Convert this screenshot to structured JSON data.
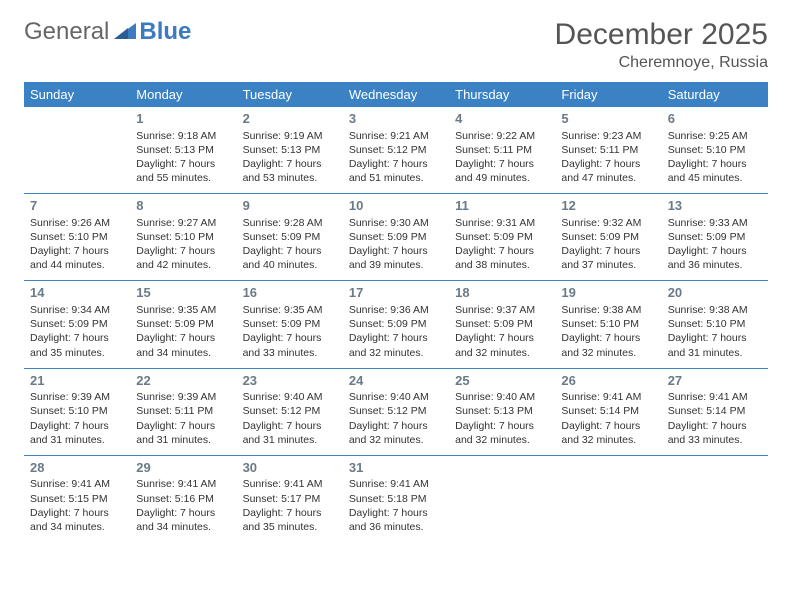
{
  "brand": {
    "part1": "General",
    "part2": "Blue"
  },
  "title": "December 2025",
  "location": "Cheremnoye, Russia",
  "colors": {
    "header_bg": "#3b82c4",
    "header_fg": "#ffffff",
    "row_divider": "#3b82c4",
    "daynum": "#6b7a88",
    "text": "#333333",
    "logo_gray": "#666666",
    "logo_blue": "#3b7bbf"
  },
  "weekdays": [
    "Sunday",
    "Monday",
    "Tuesday",
    "Wednesday",
    "Thursday",
    "Friday",
    "Saturday"
  ],
  "weeks": [
    [
      {
        "blank": true
      },
      {
        "day": "1",
        "sunrise": "Sunrise: 9:18 AM",
        "sunset": "Sunset: 5:13 PM",
        "daylight": "Daylight: 7 hours and 55 minutes."
      },
      {
        "day": "2",
        "sunrise": "Sunrise: 9:19 AM",
        "sunset": "Sunset: 5:13 PM",
        "daylight": "Daylight: 7 hours and 53 minutes."
      },
      {
        "day": "3",
        "sunrise": "Sunrise: 9:21 AM",
        "sunset": "Sunset: 5:12 PM",
        "daylight": "Daylight: 7 hours and 51 minutes."
      },
      {
        "day": "4",
        "sunrise": "Sunrise: 9:22 AM",
        "sunset": "Sunset: 5:11 PM",
        "daylight": "Daylight: 7 hours and 49 minutes."
      },
      {
        "day": "5",
        "sunrise": "Sunrise: 9:23 AM",
        "sunset": "Sunset: 5:11 PM",
        "daylight": "Daylight: 7 hours and 47 minutes."
      },
      {
        "day": "6",
        "sunrise": "Sunrise: 9:25 AM",
        "sunset": "Sunset: 5:10 PM",
        "daylight": "Daylight: 7 hours and 45 minutes."
      }
    ],
    [
      {
        "day": "7",
        "sunrise": "Sunrise: 9:26 AM",
        "sunset": "Sunset: 5:10 PM",
        "daylight": "Daylight: 7 hours and 44 minutes."
      },
      {
        "day": "8",
        "sunrise": "Sunrise: 9:27 AM",
        "sunset": "Sunset: 5:10 PM",
        "daylight": "Daylight: 7 hours and 42 minutes."
      },
      {
        "day": "9",
        "sunrise": "Sunrise: 9:28 AM",
        "sunset": "Sunset: 5:09 PM",
        "daylight": "Daylight: 7 hours and 40 minutes."
      },
      {
        "day": "10",
        "sunrise": "Sunrise: 9:30 AM",
        "sunset": "Sunset: 5:09 PM",
        "daylight": "Daylight: 7 hours and 39 minutes."
      },
      {
        "day": "11",
        "sunrise": "Sunrise: 9:31 AM",
        "sunset": "Sunset: 5:09 PM",
        "daylight": "Daylight: 7 hours and 38 minutes."
      },
      {
        "day": "12",
        "sunrise": "Sunrise: 9:32 AM",
        "sunset": "Sunset: 5:09 PM",
        "daylight": "Daylight: 7 hours and 37 minutes."
      },
      {
        "day": "13",
        "sunrise": "Sunrise: 9:33 AM",
        "sunset": "Sunset: 5:09 PM",
        "daylight": "Daylight: 7 hours and 36 minutes."
      }
    ],
    [
      {
        "day": "14",
        "sunrise": "Sunrise: 9:34 AM",
        "sunset": "Sunset: 5:09 PM",
        "daylight": "Daylight: 7 hours and 35 minutes."
      },
      {
        "day": "15",
        "sunrise": "Sunrise: 9:35 AM",
        "sunset": "Sunset: 5:09 PM",
        "daylight": "Daylight: 7 hours and 34 minutes."
      },
      {
        "day": "16",
        "sunrise": "Sunrise: 9:35 AM",
        "sunset": "Sunset: 5:09 PM",
        "daylight": "Daylight: 7 hours and 33 minutes."
      },
      {
        "day": "17",
        "sunrise": "Sunrise: 9:36 AM",
        "sunset": "Sunset: 5:09 PM",
        "daylight": "Daylight: 7 hours and 32 minutes."
      },
      {
        "day": "18",
        "sunrise": "Sunrise: 9:37 AM",
        "sunset": "Sunset: 5:09 PM",
        "daylight": "Daylight: 7 hours and 32 minutes."
      },
      {
        "day": "19",
        "sunrise": "Sunrise: 9:38 AM",
        "sunset": "Sunset: 5:10 PM",
        "daylight": "Daylight: 7 hours and 32 minutes."
      },
      {
        "day": "20",
        "sunrise": "Sunrise: 9:38 AM",
        "sunset": "Sunset: 5:10 PM",
        "daylight": "Daylight: 7 hours and 31 minutes."
      }
    ],
    [
      {
        "day": "21",
        "sunrise": "Sunrise: 9:39 AM",
        "sunset": "Sunset: 5:10 PM",
        "daylight": "Daylight: 7 hours and 31 minutes."
      },
      {
        "day": "22",
        "sunrise": "Sunrise: 9:39 AM",
        "sunset": "Sunset: 5:11 PM",
        "daylight": "Daylight: 7 hours and 31 minutes."
      },
      {
        "day": "23",
        "sunrise": "Sunrise: 9:40 AM",
        "sunset": "Sunset: 5:12 PM",
        "daylight": "Daylight: 7 hours and 31 minutes."
      },
      {
        "day": "24",
        "sunrise": "Sunrise: 9:40 AM",
        "sunset": "Sunset: 5:12 PM",
        "daylight": "Daylight: 7 hours and 32 minutes."
      },
      {
        "day": "25",
        "sunrise": "Sunrise: 9:40 AM",
        "sunset": "Sunset: 5:13 PM",
        "daylight": "Daylight: 7 hours and 32 minutes."
      },
      {
        "day": "26",
        "sunrise": "Sunrise: 9:41 AM",
        "sunset": "Sunset: 5:14 PM",
        "daylight": "Daylight: 7 hours and 32 minutes."
      },
      {
        "day": "27",
        "sunrise": "Sunrise: 9:41 AM",
        "sunset": "Sunset: 5:14 PM",
        "daylight": "Daylight: 7 hours and 33 minutes."
      }
    ],
    [
      {
        "day": "28",
        "sunrise": "Sunrise: 9:41 AM",
        "sunset": "Sunset: 5:15 PM",
        "daylight": "Daylight: 7 hours and 34 minutes."
      },
      {
        "day": "29",
        "sunrise": "Sunrise: 9:41 AM",
        "sunset": "Sunset: 5:16 PM",
        "daylight": "Daylight: 7 hours and 34 minutes."
      },
      {
        "day": "30",
        "sunrise": "Sunrise: 9:41 AM",
        "sunset": "Sunset: 5:17 PM",
        "daylight": "Daylight: 7 hours and 35 minutes."
      },
      {
        "day": "31",
        "sunrise": "Sunrise: 9:41 AM",
        "sunset": "Sunset: 5:18 PM",
        "daylight": "Daylight: 7 hours and 36 minutes."
      },
      {
        "blank": true
      },
      {
        "blank": true
      },
      {
        "blank": true
      }
    ]
  ]
}
